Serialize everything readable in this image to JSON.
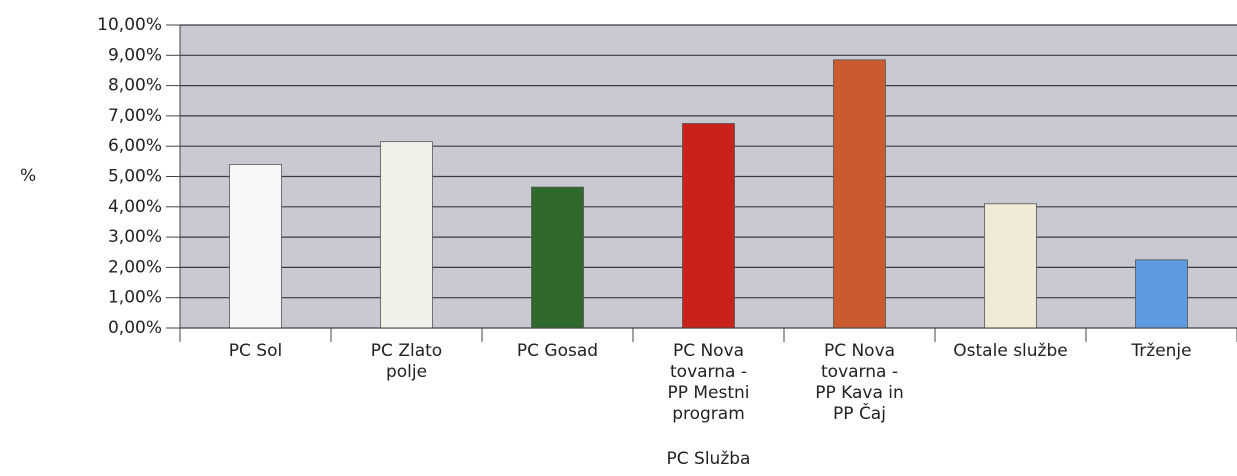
{
  "chart_data": {
    "type": "bar",
    "y_label": "%",
    "annotation": "PC Služba",
    "categories": [
      "PC Sol",
      "PC Zlato\npolje",
      "PC Gosad",
      "PC Nova\ntovarna -\nPP Mestni\nprogram",
      "PC Nova\ntovarna -\nPP Kava in\nPP Čaj",
      "Ostale službe",
      "Trženje"
    ],
    "values": [
      5.4,
      6.15,
      4.65,
      6.75,
      8.85,
      4.1,
      2.25
    ],
    "colors": [
      "#f7f7f9",
      "#f1f1ea",
      "#2f6a2c",
      "#c9221b",
      "#cb5a2e",
      "#f1ead6",
      "#5c9be0"
    ],
    "ylim": [
      0,
      10
    ],
    "yticks": [
      {
        "value": 0,
        "label": "0,00%"
      },
      {
        "value": 1,
        "label": "1,00%"
      },
      {
        "value": 2,
        "label": "2,00%"
      },
      {
        "value": 3,
        "label": "3,00%"
      },
      {
        "value": 4,
        "label": "4,00%"
      },
      {
        "value": 5,
        "label": "5,00%"
      },
      {
        "value": 6,
        "label": "6,00%"
      },
      {
        "value": 7,
        "label": "7,00%"
      },
      {
        "value": 8,
        "label": "8,00%"
      },
      {
        "value": 9,
        "label": "9,00%"
      },
      {
        "value": 10,
        "label": "10,00%"
      }
    ],
    "grid": true
  }
}
